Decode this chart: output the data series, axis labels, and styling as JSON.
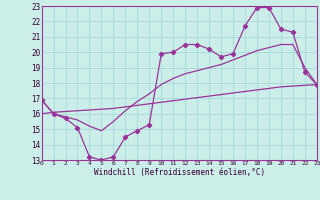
{
  "xlabel": "Windchill (Refroidissement éolien,°C)",
  "bg_color": "#cceee8",
  "grid_color": "#aadddd",
  "line_color": "#993399",
  "xlim": [
    0,
    23
  ],
  "ylim": [
    13,
    23
  ],
  "xticks": [
    0,
    1,
    2,
    3,
    4,
    5,
    6,
    7,
    8,
    9,
    10,
    11,
    12,
    13,
    14,
    15,
    16,
    17,
    18,
    19,
    20,
    21,
    22,
    23
  ],
  "yticks": [
    13,
    14,
    15,
    16,
    17,
    18,
    19,
    20,
    21,
    22,
    23
  ],
  "line1_x": [
    0,
    1,
    2,
    3,
    4,
    5,
    6,
    7,
    8,
    9,
    10,
    11,
    12,
    13,
    14,
    15,
    16,
    17,
    18,
    19,
    20,
    21,
    22,
    23
  ],
  "line1_y": [
    16.9,
    16.0,
    15.7,
    15.1,
    13.2,
    13.0,
    13.2,
    14.5,
    14.9,
    15.3,
    19.9,
    20.0,
    20.5,
    20.5,
    20.2,
    19.7,
    19.9,
    21.7,
    22.9,
    22.9,
    21.5,
    21.3,
    18.7,
    17.9
  ],
  "line2_x": [
    0,
    1,
    2,
    3,
    4,
    5,
    6,
    7,
    8,
    9,
    10,
    11,
    12,
    13,
    14,
    15,
    16,
    17,
    18,
    19,
    20,
    21,
    22,
    23
  ],
  "line2_y": [
    16.9,
    16.0,
    15.8,
    15.6,
    15.2,
    14.9,
    15.5,
    16.2,
    16.8,
    17.3,
    17.9,
    18.3,
    18.6,
    18.8,
    19.0,
    19.2,
    19.5,
    19.8,
    20.1,
    20.3,
    20.5,
    20.5,
    19.0,
    17.9
  ],
  "line3_x": [
    0,
    1,
    2,
    3,
    4,
    5,
    6,
    7,
    8,
    9,
    10,
    11,
    12,
    13,
    14,
    15,
    16,
    17,
    18,
    19,
    20,
    21,
    22,
    23
  ],
  "line3_y": [
    16.0,
    16.1,
    16.15,
    16.2,
    16.25,
    16.3,
    16.35,
    16.45,
    16.55,
    16.65,
    16.75,
    16.85,
    16.95,
    17.05,
    17.15,
    17.25,
    17.35,
    17.45,
    17.55,
    17.65,
    17.75,
    17.8,
    17.85,
    17.9
  ]
}
